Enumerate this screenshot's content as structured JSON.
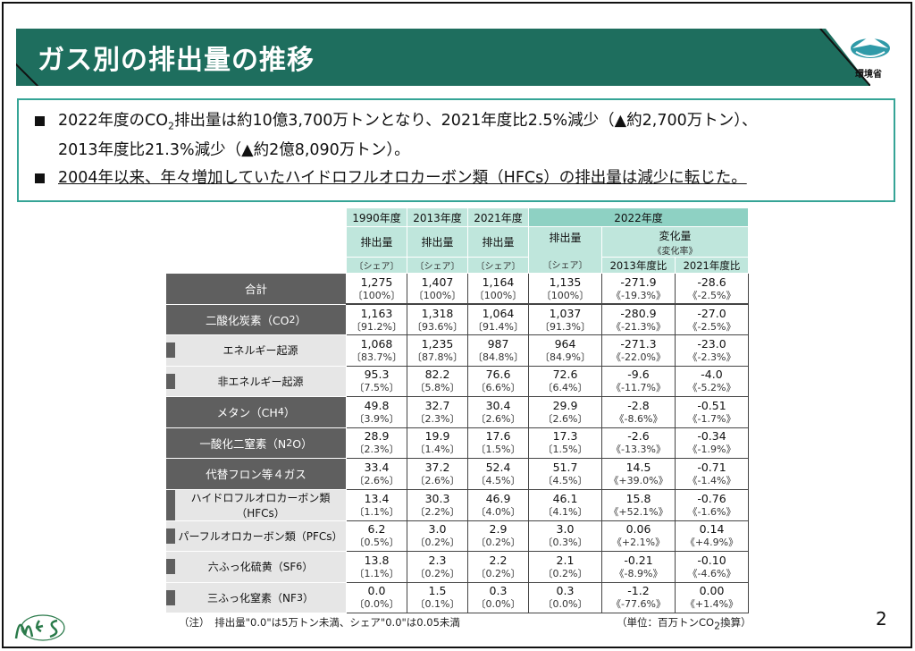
{
  "header": {
    "title": "ガス別の排出量の推移"
  },
  "logo": {
    "org": "環境省"
  },
  "summary": {
    "bullet1": {
      "pre": "2022年度のCO",
      "sub": "2",
      "post": "排出量は約10億3,700万トンとなり、2021年度比2.5%減少（▲約2,700万トン）、",
      "line2": "2013年度比21.3%減少（▲約2億8,090万トン）。"
    },
    "bullet2": "2004年以来、年々増加していたハイドロフルオロカーボン類（HFCs）の排出量は減少に転じた。"
  },
  "table": {
    "years": [
      "1990年度",
      "2013年度",
      "2021年度",
      "2022年度"
    ],
    "emission_label": "排出量",
    "share_label": "〔シェア〕",
    "change_label": "変化量",
    "change_rate_label": "《変化率》",
    "vs2013": "2013年度比",
    "vs2021": "2021年度比",
    "rows": [
      {
        "label": "合計",
        "sub": "",
        "suffix": "",
        "kind": "dark",
        "v": [
          [
            "1,275",
            "〔100%〕"
          ],
          [
            "1,407",
            "〔100%〕"
          ],
          [
            "1,164",
            "〔100%〕"
          ],
          [
            "1,135",
            "〔100%〕"
          ],
          [
            "-271.9",
            "《-19.3%》"
          ],
          [
            "-28.6",
            "《-2.5%》"
          ]
        ]
      },
      {
        "label": "二酸化炭素（CO",
        "sub": "2",
        "suffix": "）",
        "kind": "dark",
        "v": [
          [
            "1,163",
            "〔91.2%〕"
          ],
          [
            "1,318",
            "〔93.6%〕"
          ],
          [
            "1,064",
            "〔91.4%〕"
          ],
          [
            "1,037",
            "〔91.3%〕"
          ],
          [
            "-280.9",
            "《-21.3%》"
          ],
          [
            "-27.0",
            "《-2.5%》"
          ]
        ]
      },
      {
        "label": "エネルギー起源",
        "sub": "",
        "suffix": "",
        "kind": "light",
        "v": [
          [
            "1,068",
            "〔83.7%〕"
          ],
          [
            "1,235",
            "〔87.8%〕"
          ],
          [
            "987",
            "〔84.8%〕"
          ],
          [
            "964",
            "〔84.9%〕"
          ],
          [
            "-271.3",
            "《-22.0%》"
          ],
          [
            "-23.0",
            "《-2.3%》"
          ]
        ]
      },
      {
        "label": "非エネルギー起源",
        "sub": "",
        "suffix": "",
        "kind": "light",
        "v": [
          [
            "95.3",
            "〔7.5%〕"
          ],
          [
            "82.2",
            "〔5.8%〕"
          ],
          [
            "76.6",
            "〔6.6%〕"
          ],
          [
            "72.6",
            "〔6.4%〕"
          ],
          [
            "-9.6",
            "《-11.7%》"
          ],
          [
            "-4.0",
            "《-5.2%》"
          ]
        ]
      },
      {
        "label": "メタン（CH",
        "sub": "4",
        "suffix": "）",
        "kind": "dark",
        "v": [
          [
            "49.8",
            "〔3.9%〕"
          ],
          [
            "32.7",
            "〔2.3%〕"
          ],
          [
            "30.4",
            "〔2.6%〕"
          ],
          [
            "29.9",
            "〔2.6%〕"
          ],
          [
            "-2.8",
            "《-8.6%》"
          ],
          [
            "-0.51",
            "《-1.7%》"
          ]
        ]
      },
      {
        "label": "一酸化二窒素（N",
        "sub": "2",
        "suffix": "O）",
        "kind": "dark",
        "v": [
          [
            "28.9",
            "〔2.3%〕"
          ],
          [
            "19.9",
            "〔1.4%〕"
          ],
          [
            "17.6",
            "〔1.5%〕"
          ],
          [
            "17.3",
            "〔1.5%〕"
          ],
          [
            "-2.6",
            "《-13.3%》"
          ],
          [
            "-0.34",
            "《-1.9%》"
          ]
        ]
      },
      {
        "label": "代替フロン等４ガス",
        "sub": "",
        "suffix": "",
        "kind": "dark",
        "v": [
          [
            "33.4",
            "〔2.6%〕"
          ],
          [
            "37.2",
            "〔2.6%〕"
          ],
          [
            "52.4",
            "〔4.5%〕"
          ],
          [
            "51.7",
            "〔4.5%〕"
          ],
          [
            "14.5",
            "《+39.0%》"
          ],
          [
            "-0.71",
            "《-1.4%》"
          ]
        ]
      },
      {
        "label": "ハイドロフルオロカーボン類（HFCs）",
        "sub": "",
        "suffix": "",
        "kind": "light",
        "v": [
          [
            "13.4",
            "〔1.1%〕"
          ],
          [
            "30.3",
            "〔2.2%〕"
          ],
          [
            "46.9",
            "〔4.0%〕"
          ],
          [
            "46.1",
            "〔4.1%〕"
          ],
          [
            "15.8",
            "《+52.1%》"
          ],
          [
            "-0.76",
            "《-1.6%》"
          ]
        ]
      },
      {
        "label": "パーフルオロカーボン類（PFCs）",
        "sub": "",
        "suffix": "",
        "kind": "light",
        "v": [
          [
            "6.2",
            "〔0.5%〕"
          ],
          [
            "3.0",
            "〔0.2%〕"
          ],
          [
            "2.9",
            "〔0.2%〕"
          ],
          [
            "3.0",
            "〔0.3%〕"
          ],
          [
            "0.06",
            "《+2.1%》"
          ],
          [
            "0.14",
            "《+4.9%》"
          ]
        ]
      },
      {
        "label": "六ふっ化硫黄（SF",
        "sub": "6",
        "suffix": "）",
        "kind": "light",
        "v": [
          [
            "13.8",
            "〔1.1%〕"
          ],
          [
            "2.3",
            "〔0.2%〕"
          ],
          [
            "2.2",
            "〔0.2%〕"
          ],
          [
            "2.1",
            "〔0.2%〕"
          ],
          [
            "-0.21",
            "《-8.9%》"
          ],
          [
            "-0.10",
            "《-4.6%》"
          ]
        ]
      },
      {
        "label": "三ふっ化窒素（NF",
        "sub": "3",
        "suffix": "）",
        "kind": "light",
        "v": [
          [
            "0.0",
            "〔0.0%〕"
          ],
          [
            "1.5",
            "〔0.1%〕"
          ],
          [
            "0.3",
            "〔0.0%〕"
          ],
          [
            "0.3",
            "〔0.0%〕"
          ],
          [
            "-1.2",
            "《-77.6%》"
          ],
          [
            "0.00",
            "《+1.4%》"
          ]
        ]
      }
    ]
  },
  "footer": {
    "note": "（注）　排出量\"0.0\"は5万トン未満、シェア\"0.0\"は0.05未満",
    "unit_pre": "（単位：百万トンCO",
    "unit_sub": "2",
    "unit_post": "換算）",
    "page": "2",
    "mes_logo": "MES"
  },
  "colors": {
    "banner": "#1e6e5e",
    "accent": "#35a496",
    "header_light": "#bfe6dc",
    "header_dark": "#8ed1c3",
    "label_dark": "#5f5f5f",
    "label_light": "#e6e6e6"
  }
}
